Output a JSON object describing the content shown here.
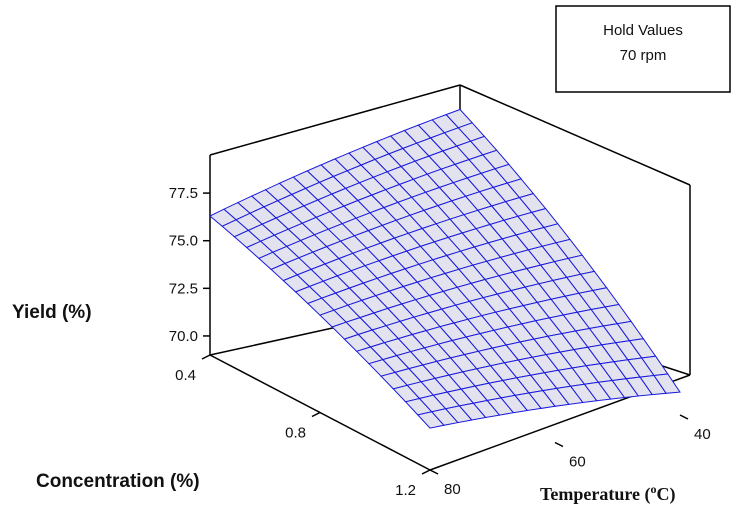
{
  "chart_data": {
    "type": "surface",
    "hold_box": {
      "title": "Hold Values",
      "value": "70 rpm"
    },
    "zlabel": "Yield (%)",
    "xlabel": "Concentration (%)",
    "ylabel_main": "Temperature (",
    "ylabel_sup": "o",
    "ylabel_unit": "C)",
    "z_ticks": [
      "70.0",
      "72.5",
      "75.0",
      "77.5"
    ],
    "z_tick_values": [
      70.0,
      72.5,
      75.0,
      77.5
    ],
    "zlim": [
      69.0,
      79.5
    ],
    "x_ticks": [
      "0.4",
      "0.8",
      "1.2"
    ],
    "x_tick_values": [
      0.4,
      0.8,
      1.2
    ],
    "xlim": [
      0.4,
      1.2
    ],
    "y_ticks": [
      "40",
      "60",
      "80"
    ],
    "y_tick_values": [
      40,
      60,
      80
    ],
    "ylim": [
      40,
      80
    ],
    "surface_corners": [
      {
        "concentration": 0.4,
        "temperature": 80,
        "yield": 76.3
      },
      {
        "concentration": 0.4,
        "temperature": 40,
        "yield": 79.0
      },
      {
        "concentration": 1.2,
        "temperature": 40,
        "yield": 70.2
      },
      {
        "concentration": 1.2,
        "temperature": 80,
        "yield": 71.2
      }
    ],
    "grid_divisions": 18,
    "surface_color": "#e3e3ef",
    "mesh_color": "#1a1adc"
  }
}
